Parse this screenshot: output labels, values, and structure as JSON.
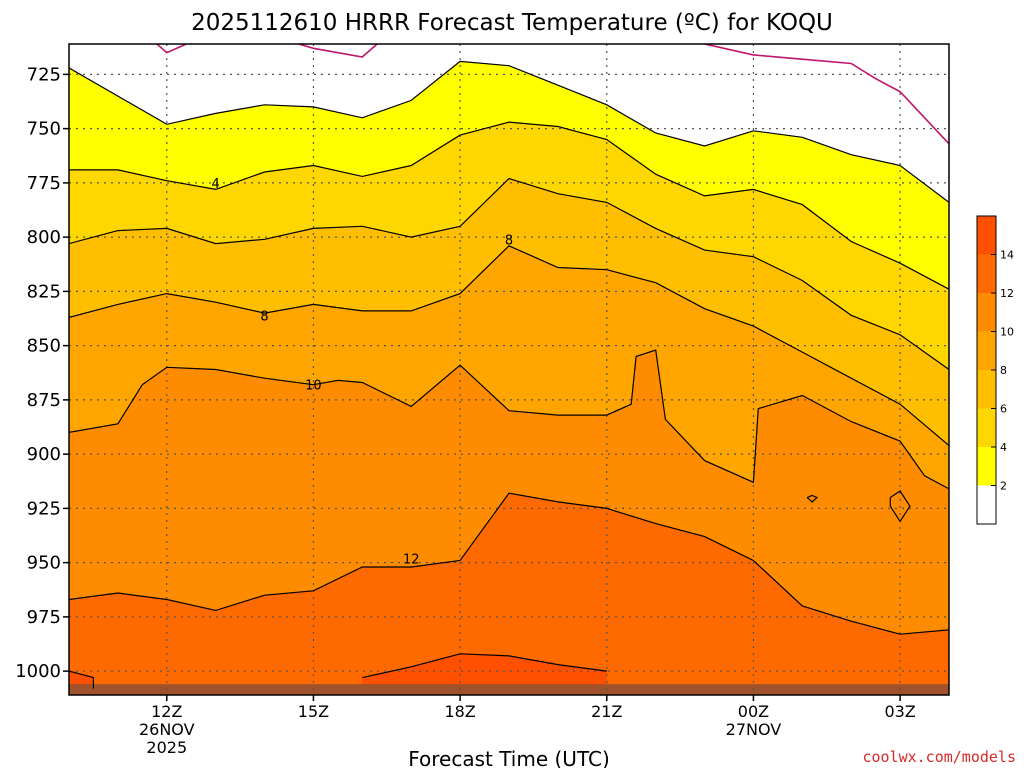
{
  "chart_data": {
    "type": "contour",
    "title": "2025112610 HRRR Forecast Temperature (ºC) for KOQU",
    "xlabel": "Forecast Time (UTC)",
    "ylabel": "",
    "credit": "coolwx.com/models",
    "x_ticks": [
      {
        "label": "12Z",
        "sub1": "26NOV",
        "sub2": "2025",
        "hour": 12
      },
      {
        "label": "15Z",
        "sub1": "",
        "sub2": "",
        "hour": 15
      },
      {
        "label": "18Z",
        "sub1": "",
        "sub2": "",
        "hour": 18
      },
      {
        "label": "21Z",
        "sub1": "",
        "sub2": "",
        "hour": 21
      },
      {
        "label": "00Z",
        "sub1": "27NOV",
        "sub2": "",
        "hour": 24
      },
      {
        "label": "03Z",
        "sub1": "",
        "sub2": "",
        "hour": 27
      }
    ],
    "xlim": [
      10,
      28
    ],
    "y_ticks": [
      725,
      750,
      775,
      800,
      825,
      850,
      875,
      900,
      925,
      950,
      975,
      1000
    ],
    "ylim": [
      711,
      1011
    ],
    "y_axis": "pressure (hPa), increasing downward",
    "surface_pressure_hpa": 1006,
    "colorbar": {
      "labels": [
        2,
        4,
        6,
        8,
        10,
        12,
        14
      ],
      "bands": [
        {
          "from": 0,
          "to": 2,
          "color": "#ffffff"
        },
        {
          "from": 2,
          "to": 4,
          "color": "#ffff00"
        },
        {
          "from": 4,
          "to": 6,
          "color": "#ffd700"
        },
        {
          "from": 6,
          "to": 8,
          "color": "#ffbf00"
        },
        {
          "from": 8,
          "to": 10,
          "color": "#ffa500"
        },
        {
          "from": 10,
          "to": 12,
          "color": "#ff8c00"
        },
        {
          "from": 12,
          "to": 14,
          "color": "#ff6a00"
        },
        {
          "from": 14,
          "to": 16,
          "color": "#ff5000"
        }
      ]
    },
    "contour_labels": [
      {
        "text": "4",
        "hour": 13,
        "p": 775
      },
      {
        "text": "8",
        "hour": 19,
        "p": 801
      },
      {
        "text": "8",
        "hour": 14,
        "p": 836
      },
      {
        "text": "10",
        "hour": 15,
        "p": 868
      },
      {
        "text": "12",
        "hour": 17,
        "p": 948
      }
    ],
    "contours": [
      {
        "level": 2,
        "points": [
          [
            10,
            722
          ],
          [
            12,
            748
          ],
          [
            13,
            743
          ],
          [
            14,
            739
          ],
          [
            15,
            740
          ],
          [
            16,
            745
          ],
          [
            17,
            737
          ],
          [
            18,
            719
          ],
          [
            19,
            721
          ],
          [
            20,
            730
          ],
          [
            21,
            739
          ],
          [
            22,
            752
          ],
          [
            23,
            758
          ],
          [
            24,
            751
          ],
          [
            25,
            754
          ],
          [
            26,
            762
          ],
          [
            27,
            767
          ],
          [
            28,
            784
          ]
        ]
      },
      {
        "level": 4,
        "points": [
          [
            10,
            769
          ],
          [
            11,
            769
          ],
          [
            12,
            774
          ],
          [
            13,
            778
          ],
          [
            14,
            770
          ],
          [
            15,
            767
          ],
          [
            16,
            772
          ],
          [
            17,
            767
          ],
          [
            18,
            753
          ],
          [
            19,
            747
          ],
          [
            20,
            749
          ],
          [
            21,
            755
          ],
          [
            22,
            771
          ],
          [
            23,
            781
          ],
          [
            24,
            778
          ],
          [
            25,
            785
          ],
          [
            26,
            802
          ],
          [
            27,
            812
          ],
          [
            28,
            824
          ]
        ]
      },
      {
        "level": 6,
        "points": [
          [
            10,
            803
          ],
          [
            11,
            797
          ],
          [
            12,
            796
          ],
          [
            13,
            803
          ],
          [
            14,
            801
          ],
          [
            15,
            796
          ],
          [
            16,
            795
          ],
          [
            17,
            800
          ],
          [
            18,
            795
          ],
          [
            19,
            773
          ],
          [
            20,
            780
          ],
          [
            21,
            784
          ],
          [
            22,
            796
          ],
          [
            23,
            806
          ],
          [
            24,
            809
          ],
          [
            25,
            820
          ],
          [
            26,
            836
          ],
          [
            27,
            845
          ],
          [
            28,
            861
          ]
        ]
      },
      {
        "level": 8,
        "points": [
          [
            10,
            837
          ],
          [
            11,
            831
          ],
          [
            12,
            826
          ],
          [
            13,
            830
          ],
          [
            14,
            835
          ],
          [
            15,
            831
          ],
          [
            16,
            834
          ],
          [
            17,
            834
          ],
          [
            18,
            826
          ],
          [
            19,
            804
          ],
          [
            20,
            814
          ],
          [
            21,
            815
          ],
          [
            22,
            821
          ],
          [
            23,
            833
          ],
          [
            24,
            841
          ],
          [
            25,
            853
          ],
          [
            26,
            865
          ],
          [
            27,
            877
          ],
          [
            28,
            896
          ]
        ]
      },
      {
        "level": 10,
        "points": [
          [
            10,
            890
          ],
          [
            11,
            886
          ],
          [
            11.5,
            868
          ],
          [
            12,
            860
          ],
          [
            13,
            861
          ],
          [
            14,
            865
          ],
          [
            15,
            868
          ],
          [
            15.5,
            866
          ],
          [
            16,
            867
          ],
          [
            17,
            878
          ],
          [
            18,
            859
          ],
          [
            19,
            880
          ],
          [
            20,
            882
          ],
          [
            21,
            882
          ],
          [
            21.5,
            877
          ],
          [
            21.6,
            855
          ],
          [
            22,
            852
          ],
          [
            22.2,
            884
          ],
          [
            23,
            903
          ],
          [
            24,
            913
          ],
          [
            24.1,
            879
          ],
          [
            25,
            873
          ],
          [
            26,
            885
          ],
          [
            27,
            894
          ],
          [
            27.5,
            910
          ],
          [
            28,
            916
          ]
        ]
      },
      {
        "level": 12,
        "points": [
          [
            10,
            967
          ],
          [
            11,
            964
          ],
          [
            12,
            967
          ],
          [
            13,
            972
          ],
          [
            14,
            965
          ],
          [
            15,
            963
          ],
          [
            16,
            952
          ],
          [
            17,
            952
          ],
          [
            18,
            949
          ],
          [
            19,
            918
          ],
          [
            20,
            922
          ],
          [
            21,
            925
          ],
          [
            22,
            932
          ],
          [
            23,
            938
          ],
          [
            24,
            949
          ],
          [
            25,
            970
          ],
          [
            26,
            977
          ],
          [
            27,
            983
          ],
          [
            28,
            981
          ]
        ]
      },
      {
        "level": 14,
        "points": [
          [
            16,
            1003
          ],
          [
            17,
            998
          ],
          [
            18,
            992
          ],
          [
            19,
            993
          ],
          [
            20,
            997
          ],
          [
            21,
            1000
          ]
        ]
      },
      {
        "level": 14,
        "points": [
          [
            10,
            1000
          ],
          [
            10.5,
            1003
          ],
          [
            10.5,
            1008
          ]
        ]
      },
      {
        "level": 11,
        "points": [
          [
            26.8,
            920
          ],
          [
            27,
            917
          ],
          [
            27.2,
            924
          ],
          [
            27,
            931
          ],
          [
            26.8,
            924
          ],
          [
            26.8,
            920
          ]
        ]
      },
      {
        "level": 11,
        "points": [
          [
            25.1,
            920
          ],
          [
            25.2,
            919
          ],
          [
            25.3,
            920
          ],
          [
            25.2,
            922
          ],
          [
            25.1,
            920
          ]
        ]
      }
    ],
    "reference_lines": [
      {
        "level": 0,
        "color": "#c0156c",
        "points": [
          [
            11.8,
            711
          ],
          [
            12,
            715
          ],
          [
            12.4,
            711
          ]
        ]
      },
      {
        "level": 0,
        "color": "#c0156c",
        "points": [
          [
            14.7,
            711
          ],
          [
            15,
            713
          ],
          [
            16,
            717
          ],
          [
            16.3,
            711
          ]
        ]
      },
      {
        "level": 0,
        "color": "#c0156c",
        "points": [
          [
            23,
            711
          ],
          [
            24,
            716
          ],
          [
            25,
            718
          ],
          [
            26,
            720
          ],
          [
            26.5,
            727
          ],
          [
            27,
            733
          ],
          [
            28,
            757
          ]
        ]
      }
    ]
  }
}
